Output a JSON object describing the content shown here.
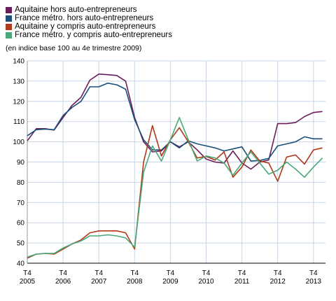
{
  "subtitle": "(en indice base 100 au 4e trimestre 2009)",
  "chart_data": {
    "type": "line",
    "ylim": [
      40,
      140
    ],
    "y_ticks": [
      "40",
      "50",
      "60",
      "70",
      "80",
      "90",
      "100",
      "110",
      "120",
      "130",
      "140"
    ],
    "x_ticks": [
      {
        "q": "T4",
        "year": "2005"
      },
      {
        "q": "T4",
        "year": "2006"
      },
      {
        "q": "T4",
        "year": "2007"
      },
      {
        "q": "T4",
        "year": "2008"
      },
      {
        "q": "T4",
        "year": "2009"
      },
      {
        "q": "T4",
        "year": "2010"
      },
      {
        "q": "T4",
        "year": "2011"
      },
      {
        "q": "T4",
        "year": "2012"
      },
      {
        "q": "T4",
        "year": "2013"
      }
    ],
    "x": [
      "2005T4",
      "2006T1",
      "2006T2",
      "2006T3",
      "2006T4",
      "2007T1",
      "2007T2",
      "2007T3",
      "2007T4",
      "2008T1",
      "2008T2",
      "2008T3",
      "2008T4",
      "2009T1",
      "2009T2",
      "2009T3",
      "2009T4",
      "2010T1",
      "2010T2",
      "2010T3",
      "2010T4",
      "2011T1",
      "2011T2",
      "2011T3",
      "2011T4",
      "2012T1",
      "2012T2",
      "2012T3",
      "2012T4",
      "2013T1",
      "2013T2",
      "2013T3",
      "2013T4",
      "2014T1"
    ],
    "grid": true,
    "legend_position": "top-left",
    "series": [
      {
        "name": "Aquitaine hors auto-entrepreneurs",
        "color": "#6b1d5a",
        "values": [
          100.5,
          106.5,
          106.5,
          105.8,
          112,
          118,
          122,
          130.5,
          133.5,
          133.2,
          132.8,
          130,
          112,
          100,
          95,
          95.5,
          100,
          97.5,
          100,
          96,
          91.5,
          90,
          89.5,
          95.5,
          89.5,
          86.5,
          90,
          91,
          109,
          109,
          109.5,
          112.5,
          114.5,
          115
        ]
      },
      {
        "name": "France métro. hors auto-entrepreneurs",
        "color": "#1a4f7a",
        "values": [
          103,
          106,
          106.3,
          106,
          113,
          117,
          120,
          127.2,
          127.2,
          129,
          128.2,
          126,
          111,
          101,
          96,
          96,
          100,
          97,
          100.5,
          99,
          98,
          97,
          95.5,
          96.5,
          97.5,
          90.5,
          90.8,
          91.8,
          98,
          99,
          100,
          102.5,
          101.5,
          101.5
        ]
      },
      {
        "name": "Aquitaine y compris auto-entrepreneurs",
        "color": "#b03a1a",
        "values": [
          42.5,
          44.5,
          44.8,
          44.5,
          47,
          49.5,
          51.5,
          55,
          56,
          56,
          56,
          55,
          47,
          90,
          108,
          93,
          101,
          107,
          100,
          92,
          92.8,
          91,
          95,
          82.5,
          87.5,
          96,
          90.5,
          89.5,
          80.5,
          92.5,
          93.5,
          89,
          96,
          97
        ]
      },
      {
        "name": "France métro. y compris auto-entrepreneurs",
        "color": "#4aa878",
        "values": [
          43,
          44.5,
          44.8,
          44.8,
          47.5,
          49.5,
          51,
          53.5,
          53.5,
          54,
          53.5,
          52.5,
          48,
          85,
          98,
          90.5,
          101,
          112,
          101,
          90.5,
          93,
          92,
          89.5,
          83.5,
          89.5,
          95,
          89.5,
          84,
          86,
          90,
          86.5,
          82.5,
          87.5,
          92
        ]
      }
    ]
  }
}
